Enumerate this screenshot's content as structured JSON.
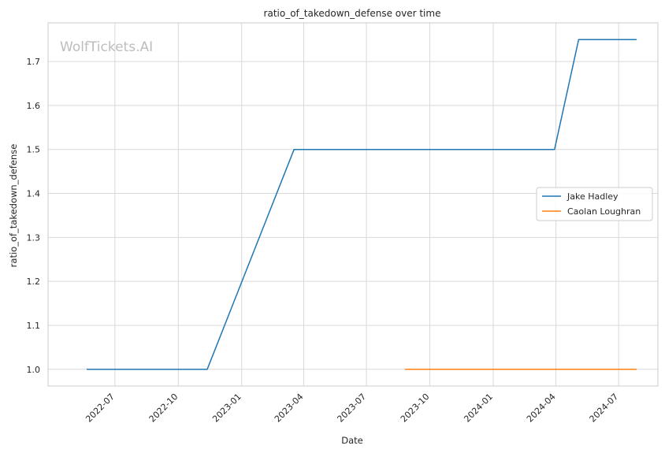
{
  "chart_data": {
    "type": "line",
    "title": "ratio_of_takedown_defense over time",
    "xlabel": "Date",
    "ylabel": "ratio_of_takedown_defense",
    "watermark": "WolfTickets.AI",
    "xlim": [
      "2022-03-26",
      "2024-08-27"
    ],
    "ylim": [
      0.962,
      1.788
    ],
    "x_ticks": [
      {
        "date": "2022-07-01",
        "label": "2022-07"
      },
      {
        "date": "2022-10-01",
        "label": "2022-10"
      },
      {
        "date": "2023-01-01",
        "label": "2023-01"
      },
      {
        "date": "2023-04-01",
        "label": "2023-04"
      },
      {
        "date": "2023-07-01",
        "label": "2023-07"
      },
      {
        "date": "2023-10-01",
        "label": "2023-10"
      },
      {
        "date": "2024-01-01",
        "label": "2024-01"
      },
      {
        "date": "2024-04-01",
        "label": "2024-04"
      },
      {
        "date": "2024-07-01",
        "label": "2024-07"
      }
    ],
    "y_ticks": [
      1.0,
      1.1,
      1.2,
      1.3,
      1.4,
      1.5,
      1.6,
      1.7
    ],
    "grid": true,
    "legend_position": "center-right",
    "series": [
      {
        "name": "Jake Hadley",
        "color": "#1f77b4",
        "points": [
          {
            "x": "2022-05-21",
            "y": 1.0
          },
          {
            "x": "2022-11-12",
            "y": 1.0
          },
          {
            "x": "2023-03-18",
            "y": 1.5
          },
          {
            "x": "2024-03-30",
            "y": 1.5
          },
          {
            "x": "2024-05-04",
            "y": 1.75
          },
          {
            "x": "2024-07-27",
            "y": 1.75
          }
        ]
      },
      {
        "name": "Caolan Loughran",
        "color": "#ff7f0e",
        "points": [
          {
            "x": "2023-08-26",
            "y": 1.0
          },
          {
            "x": "2024-07-27",
            "y": 1.0
          }
        ]
      }
    ]
  }
}
